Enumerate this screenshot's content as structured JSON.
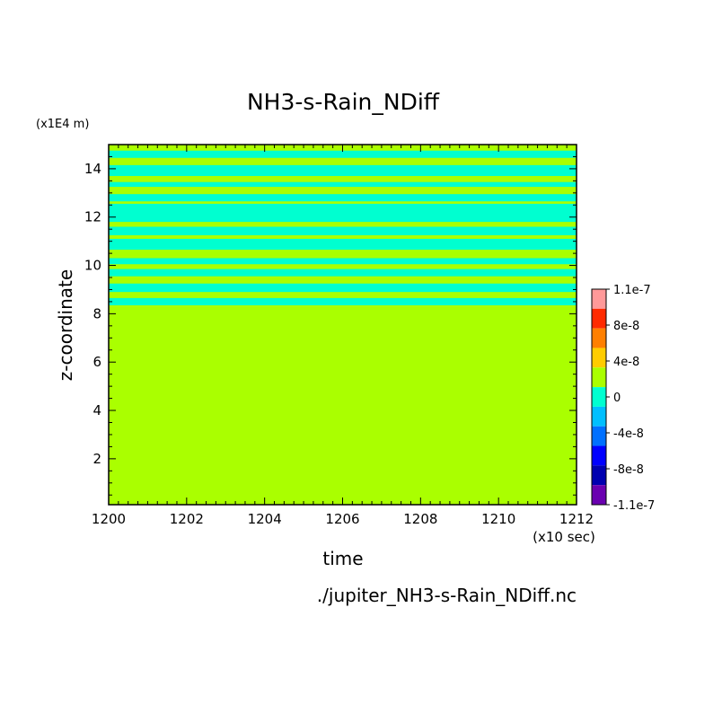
{
  "chart_data": {
    "type": "heatmap",
    "title": "NH3-s-Rain_NDiff",
    "xlabel": "time",
    "ylabel": "z-coordinate",
    "x_unit": "(x10 sec)",
    "y_unit": "(x1E4 m)",
    "source_file": "./jupiter_NH3-s-Rain_NDiff.nc",
    "xlim": [
      1200,
      1212
    ],
    "ylim": [
      0.1,
      15
    ],
    "x_ticks": [
      "1200",
      "1202",
      "1204",
      "1206",
      "1208",
      "1210",
      "1212"
    ],
    "y_ticks": [
      "2",
      "4",
      "6",
      "8",
      "10",
      "12",
      "14"
    ],
    "background_level_color": "#aaff00",
    "bands": [
      {
        "value": "negative",
        "color": "#00ffd0",
        "from": 14.45,
        "to": 14.75
      },
      {
        "value": "negative",
        "color": "#00ffd0",
        "from": 13.7,
        "to": 14.15
      },
      {
        "value": "negative",
        "color": "#00ffd0",
        "from": 13.25,
        "to": 13.45
      },
      {
        "value": "negative",
        "color": "#00ffd0",
        "from": 12.65,
        "to": 12.95
      },
      {
        "value": "negative",
        "color": "#00ffd0",
        "from": 11.8,
        "to": 12.55
      },
      {
        "value": "negative",
        "color": "#00ffd0",
        "from": 11.25,
        "to": 11.6
      },
      {
        "value": "negative",
        "color": "#00ffd0",
        "from": 10.65,
        "to": 11.1
      },
      {
        "value": "negative",
        "color": "#00ffd0",
        "from": 10.05,
        "to": 10.3
      },
      {
        "value": "negative",
        "color": "#00ffd0",
        "from": 9.55,
        "to": 9.85
      },
      {
        "value": "negative",
        "color": "#00ffd0",
        "from": 8.9,
        "to": 9.25
      },
      {
        "value": "negative",
        "color": "#00ffd0",
        "from": 8.35,
        "to": 8.65
      }
    ],
    "colorbar": {
      "labels": [
        "1.1e-7",
        "8e-8",
        "4e-8",
        "0",
        "-4e-8",
        "-8e-8",
        "-1.1e-7"
      ],
      "colors": [
        "#ff9999",
        "#ff2a00",
        "#ff7f00",
        "#ffcc00",
        "#aaff00",
        "#00ffd0",
        "#00bfff",
        "#0070ff",
        "#0000ff",
        "#0000b0",
        "#6a00b0"
      ]
    }
  }
}
